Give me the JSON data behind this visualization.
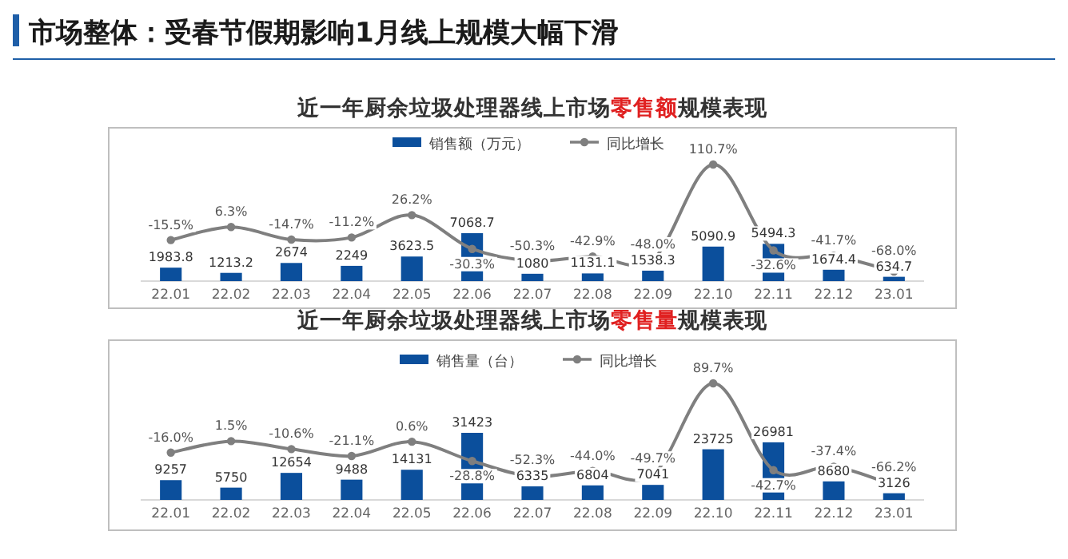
{
  "chart_data": [
    {
      "type": "bar",
      "title": "市场整体：受春节假期影响1月线上规模大幅下滑",
      "subtitle": "近一年厨余垃圾处理器线上市场**零售额**规模表现",
      "categories": [
        "22.01",
        "22.02",
        "22.03",
        "22.04",
        "22.05",
        "22.06",
        "22.07",
        "22.08",
        "22.09",
        "22.10",
        "22.11",
        "22.12",
        "23.01"
      ],
      "legend": "top",
      "data_labels": true,
      "series": [
        {
          "name": "销售额（万元）",
          "type": "bar",
          "color": "#0b4f9c",
          "values": [
            1983.8,
            1213.2,
            2674.0,
            2249.0,
            3623.5,
            7068.7,
            1080.0,
            1131.1,
            1538.3,
            5090.9,
            5494.3,
            1674.4,
            634.7
          ]
        },
        {
          "name": "同比增长",
          "type": "line",
          "axis": "y2",
          "color": "#7f7f7f",
          "marker": "circle",
          "values": [
            -15.5,
            6.3,
            -14.7,
            -11.2,
            26.2,
            -30.3,
            -50.3,
            -42.9,
            -48.0,
            110.7,
            -32.6,
            -41.7,
            -68.0
          ],
          "value_labels": [
            "-15.5%",
            "6.3%",
            "-14.7%",
            "-11.2%",
            "26.2%",
            "-30.3%",
            "-50.3%",
            "-42.9%",
            "-48.0%",
            "110.7%",
            "-32.6%",
            "-41.7%",
            "-68.0%"
          ]
        }
      ]
    },
    {
      "type": "bar",
      "title": "近一年厨余垃圾处理器线上市场**零售量**规模表现",
      "categories": [
        "22.01",
        "22.02",
        "22.03",
        "22.04",
        "22.05",
        "22.06",
        "22.07",
        "22.08",
        "22.09",
        "22.10",
        "22.11",
        "22.12",
        "23.01"
      ],
      "legend": "top",
      "data_labels": true,
      "series": [
        {
          "name": "销售量（台）",
          "type": "bar",
          "color": "#0b4f9c",
          "values": [
            9257,
            5750,
            12654,
            9488,
            14131,
            31423,
            6335,
            6804,
            7041,
            23725,
            26981,
            8680,
            3126
          ]
        },
        {
          "name": "同比增长",
          "type": "line",
          "axis": "y2",
          "color": "#7f7f7f",
          "marker": "circle",
          "values": [
            -16.0,
            1.5,
            -10.6,
            -21.1,
            0.6,
            -28.8,
            -52.3,
            -44.0,
            -49.7,
            89.7,
            -42.7,
            -37.4,
            -66.2
          ],
          "value_labels": [
            "-16.0%",
            "1.5%",
            "-10.6%",
            "-21.1%",
            "0.6%",
            "-28.8%",
            "-52.3%",
            "-44.0%",
            "-49.7%",
            "89.7%",
            "-42.7%",
            "-37.4%",
            "-66.2%"
          ]
        }
      ]
    }
  ]
}
